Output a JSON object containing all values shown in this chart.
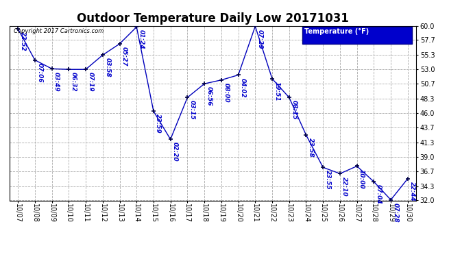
{
  "title": "Outdoor Temperature Daily Low 20171031",
  "copyright": "Copyright 2017 Cartronics.com",
  "legend_label": "Temperature (°F)",
  "x_labels": [
    "10/07",
    "10/08",
    "10/09",
    "10/10",
    "10/11",
    "10/12",
    "10/13",
    "10/14",
    "10/15",
    "10/16",
    "10/17",
    "10/18",
    "10/19",
    "10/20",
    "10/21",
    "10/22",
    "10/23",
    "10/24",
    "10/25",
    "10/26",
    "10/27",
    "10/28",
    "10/29",
    "10/30"
  ],
  "x_values": [
    0,
    1,
    2,
    3,
    4,
    5,
    6,
    7,
    8,
    9,
    10,
    11,
    12,
    13,
    14,
    15,
    16,
    17,
    18,
    19,
    20,
    21,
    22,
    23
  ],
  "y_values": [
    59.5,
    54.5,
    53.1,
    53.0,
    53.0,
    55.3,
    57.1,
    59.8,
    46.3,
    41.8,
    48.5,
    50.7,
    51.3,
    52.1,
    59.9,
    51.5,
    48.5,
    42.5,
    37.3,
    36.3,
    37.5,
    35.0,
    32.1,
    35.5
  ],
  "time_labels": [
    "22:52",
    "07:06",
    "03:49",
    "06:32",
    "07:19",
    "03:58",
    "05:27",
    "01:24",
    "23:59",
    "02:20",
    "03:15",
    "06:56",
    "08:00",
    "04:02",
    "07:29",
    "19:51",
    "08:15",
    "23:58",
    "23:55",
    "22:10",
    "10:00",
    "07:04",
    "07:28",
    "22:44"
  ],
  "line_color": "#0000bb",
  "bg_color": "#ffffff",
  "grid_color": "#aaaaaa",
  "title_fontsize": 12,
  "tick_fontsize": 7,
  "time_fontsize": 6.5,
  "ylim": [
    32.0,
    60.0
  ],
  "yticks": [
    32.0,
    34.3,
    36.7,
    39.0,
    41.3,
    43.7,
    46.0,
    48.3,
    50.7,
    53.0,
    55.3,
    57.7,
    60.0
  ],
  "legend_bg": "#0000cc",
  "legend_text_color": "#ffffff"
}
